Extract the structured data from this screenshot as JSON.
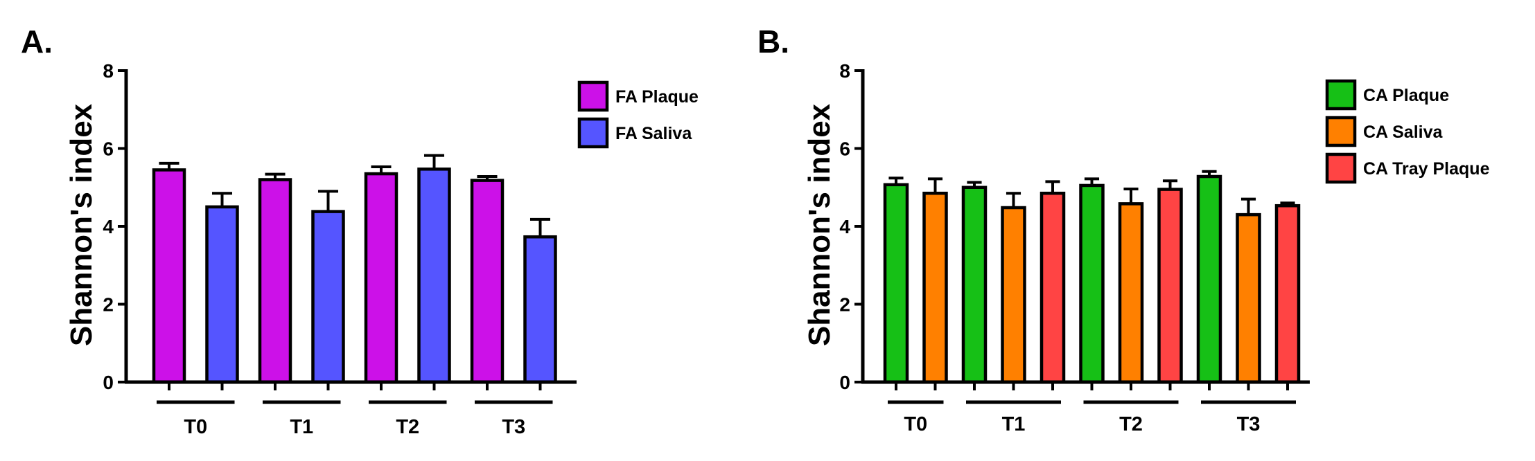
{
  "chart_data": [
    {
      "type": "bar",
      "panel": "A.",
      "ylabel": "Shannon's index",
      "ylim": [
        0,
        8
      ],
      "yticks": [
        "0",
        "2",
        "4",
        "6",
        "8"
      ],
      "legend_position": "top-right",
      "groups": [
        "T0",
        "T1",
        "T2",
        "T3"
      ],
      "series": [
        {
          "name": "FA Plaque",
          "color": "#cc11e8",
          "values": [
            5.45,
            5.2,
            5.35,
            5.18
          ],
          "errors": [
            0.17,
            0.14,
            0.18,
            0.1
          ]
        },
        {
          "name": "FA Saliva",
          "color": "#5555ff",
          "values": [
            4.5,
            4.38,
            5.47,
            3.73
          ],
          "errors": [
            0.35,
            0.52,
            0.35,
            0.45
          ]
        }
      ],
      "bar_order": [
        {
          "group": 0,
          "series": 0
        },
        {
          "group": 0,
          "series": 1
        },
        {
          "group": 1,
          "series": 0
        },
        {
          "group": 1,
          "series": 1
        },
        {
          "group": 2,
          "series": 0
        },
        {
          "group": 2,
          "series": 1
        },
        {
          "group": 3,
          "series": 0
        },
        {
          "group": 3,
          "series": 1
        }
      ]
    },
    {
      "type": "bar",
      "panel": "B.",
      "ylabel": "Shannon's index",
      "ylim": [
        0,
        8
      ],
      "yticks": [
        "0",
        "2",
        "4",
        "6",
        "8"
      ],
      "legend_position": "top-right",
      "groups": [
        "T0",
        "T1",
        "T2",
        "T3"
      ],
      "series": [
        {
          "name": "CA Plaque",
          "color": "#16c016",
          "values": [
            5.07,
            5.0,
            5.05,
            5.28
          ],
          "errors": [
            0.17,
            0.13,
            0.17,
            0.13
          ]
        },
        {
          "name": "CA Saliva",
          "color": "#ff8000",
          "values": [
            4.85,
            4.48,
            4.58,
            4.3
          ],
          "errors": [
            0.37,
            0.37,
            0.38,
            0.4
          ]
        },
        {
          "name": "CA Tray Plaque",
          "color": "#ff4444",
          "values": [
            null,
            4.85,
            4.95,
            4.53
          ],
          "errors": [
            null,
            0.3,
            0.22,
            0.07
          ]
        }
      ],
      "bar_order": [
        {
          "group": 0,
          "series": 0
        },
        {
          "group": 0,
          "series": 1
        },
        {
          "group": 1,
          "series": 0
        },
        {
          "group": 1,
          "series": 1
        },
        {
          "group": 1,
          "series": 2
        },
        {
          "group": 2,
          "series": 0
        },
        {
          "group": 2,
          "series": 1
        },
        {
          "group": 2,
          "series": 2
        },
        {
          "group": 3,
          "series": 0
        },
        {
          "group": 3,
          "series": 1
        },
        {
          "group": 3,
          "series": 2
        }
      ]
    }
  ]
}
